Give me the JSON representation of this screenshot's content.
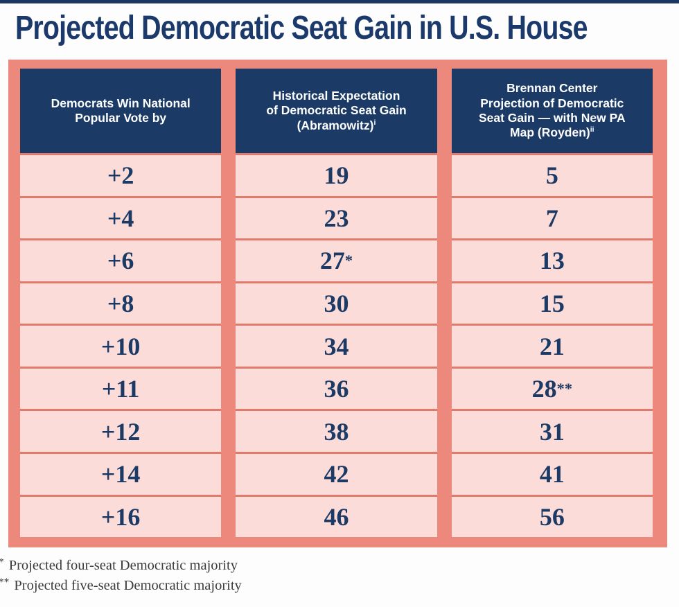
{
  "title": "Projected Democratic Seat Gain in U.S. House",
  "chart_data": {
    "type": "table",
    "title": "Projected Democratic Seat Gain in U.S. House",
    "columns": [
      {
        "label": "Democrats Win National\nPopular Vote by",
        "sup": ""
      },
      {
        "label": "Historical Expectation\nof Democratic Seat Gain\n(Abramowitz)",
        "sup": "i"
      },
      {
        "label": "Brennan Center\nProjection of Democratic\nSeat Gain — with New PA\nMap (Royden)",
        "sup": "ii"
      }
    ],
    "rows": [
      [
        "+2",
        "19",
        "5"
      ],
      [
        "+4",
        "23",
        "7"
      ],
      [
        "+6",
        "27*",
        "13"
      ],
      [
        "+8",
        "30",
        "15"
      ],
      [
        "+10",
        "34",
        "21"
      ],
      [
        "+11",
        "36",
        "28**"
      ],
      [
        "+12",
        "38",
        "31"
      ],
      [
        "+14",
        "42",
        "41"
      ],
      [
        "+16",
        "46",
        "56"
      ]
    ]
  },
  "footnotes": [
    {
      "marker": "*",
      "text": "Projected four-seat Democratic majority"
    },
    {
      "marker": "**",
      "text": "Projected five-seat Democratic majority"
    }
  ],
  "colors": {
    "header_navy": "#1b3a66",
    "title_navy": "#1b3a6b",
    "frame_salmon": "#ec897c",
    "separator_salmon": "#e2796b",
    "cell_pink": "#fcdcd8",
    "number_navy": "#1b3a66",
    "header_text": "#ffffff",
    "footnote_gray": "#3b3b3b",
    "top_strip_navy": "#1c3763"
  }
}
